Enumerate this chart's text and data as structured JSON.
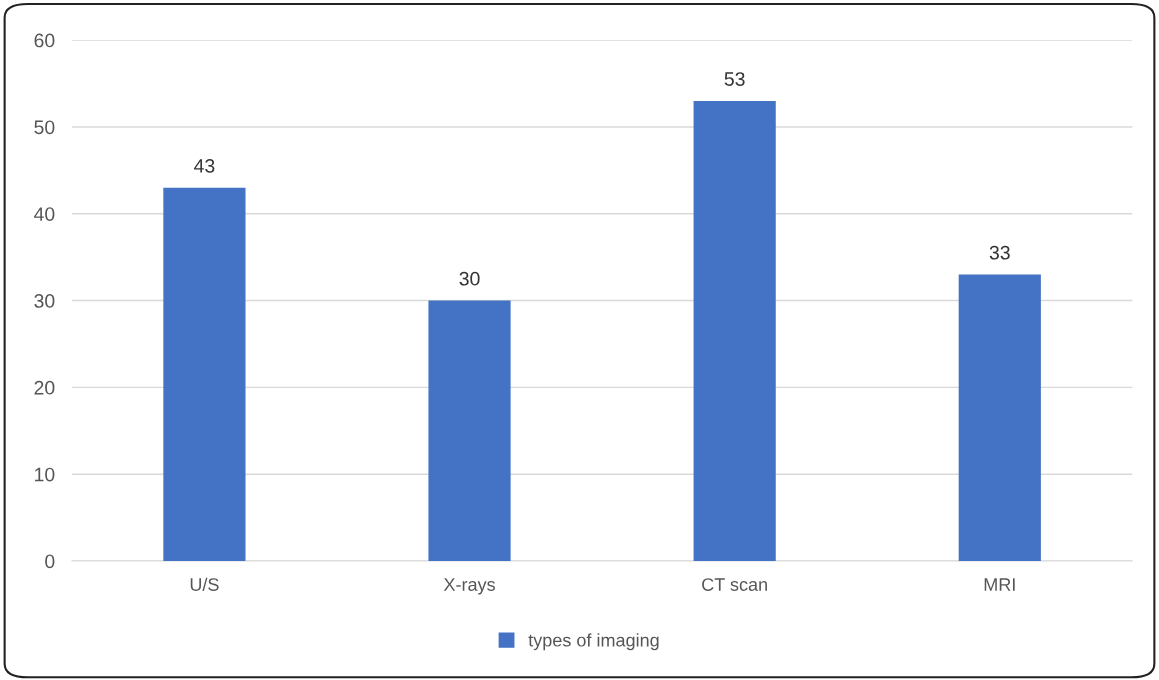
{
  "chart_data": {
    "type": "bar",
    "categories": [
      "U/S",
      "X-rays",
      "CT scan",
      "MRI"
    ],
    "series": [
      {
        "name": "types of imaging",
        "color": "#4472c4",
        "values": [
          43,
          30,
          53,
          33
        ]
      }
    ],
    "ylim": [
      0,
      60
    ],
    "yticks": [
      0,
      10,
      20,
      30,
      40,
      50,
      60
    ],
    "grid": "y",
    "legend": "bottom",
    "data_labels": true
  }
}
